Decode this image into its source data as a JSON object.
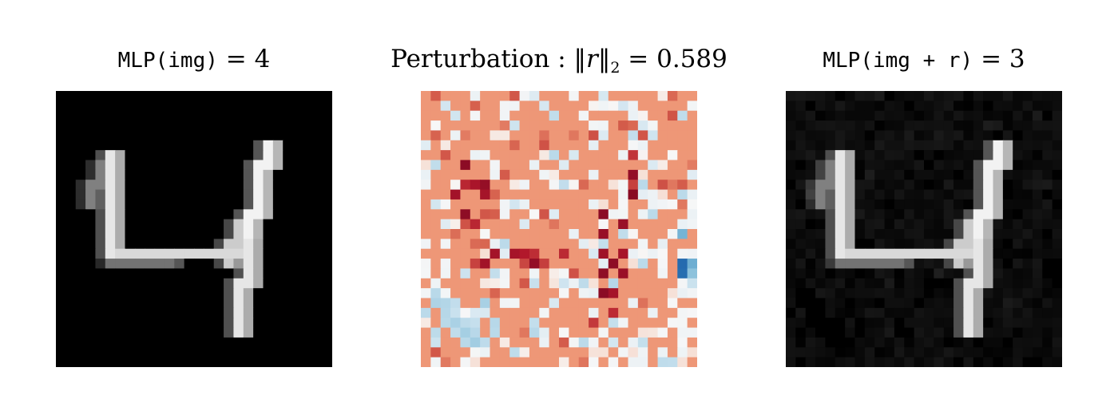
{
  "panels": [
    {
      "title_code": "MLP(img)",
      "title_eq": "=",
      "title_value": "4",
      "colormap": "gray"
    },
    {
      "title_word": "Perturbation",
      "title_colon": ":",
      "title_norm_open": "‖",
      "title_norm_var": "r",
      "title_norm_close": "‖",
      "title_norm_sub": "2",
      "title_eq": "=",
      "title_value": "0.589",
      "colormap": "RdBu"
    },
    {
      "title_code": "MLP(img + r)",
      "title_eq": "=",
      "title_value": "3",
      "colormap": "gray"
    }
  ],
  "colors": {
    "background": "#ffffff",
    "image_black": "#000000",
    "rdbu_neutral": "#ef9a7a",
    "rdbu_red": "#67001f",
    "rdbu_blue": "#2166ac"
  },
  "image_grid": [
    28,
    28
  ]
}
